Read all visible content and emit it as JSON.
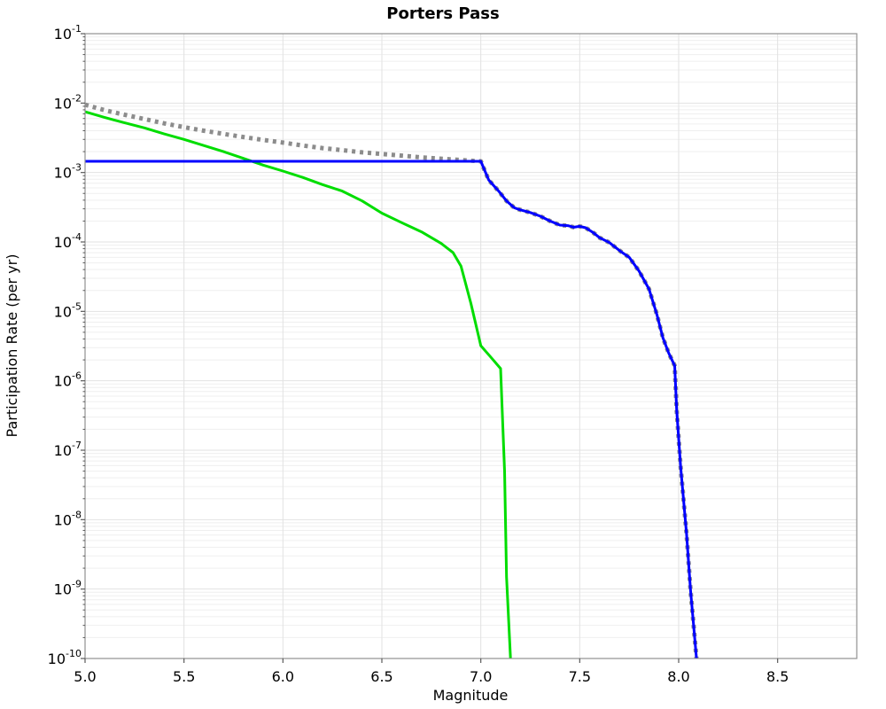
{
  "chart_data": {
    "type": "line",
    "title": "Porters Pass",
    "xlabel": "Magnitude",
    "ylabel": "Participation Rate (per yr)",
    "x_range": [
      5.0,
      8.9
    ],
    "y_exp_range": [
      -1,
      -10
    ],
    "x_ticks": [
      5.0,
      5.5,
      6.0,
      6.5,
      7.0,
      7.5,
      8.0,
      8.5
    ],
    "x_tick_labels": [
      "5.0",
      "5.5",
      "6.0",
      "6.5",
      "7.0",
      "7.5",
      "8.0",
      "8.5"
    ],
    "y_tick_base": "10",
    "y_tick_exponents": [
      -1,
      -2,
      -3,
      -4,
      -5,
      -6,
      -7,
      -8,
      -9,
      -10
    ],
    "grid": true,
    "legend_position": "none",
    "colors": {
      "background": "#ffffff",
      "plot_background": "#ffffff",
      "border": "#919191",
      "grid_major": "#e2e2e2",
      "grid_minor": "#efefef",
      "tick": "#5a5a5a",
      "text": "#000000",
      "blue_series": "#0000ff",
      "green_series": "#00dd00",
      "gray_series": "#8c8c8c"
    },
    "series": [
      {
        "name": "green-solid-curve",
        "color": "#00dd00",
        "style": "solid",
        "width": 3,
        "points": [
          [
            5.0,
            0.0075
          ],
          [
            5.1,
            0.0062
          ],
          [
            5.2,
            0.0052
          ],
          [
            5.3,
            0.0044
          ],
          [
            5.4,
            0.0036
          ],
          [
            5.5,
            0.003
          ],
          [
            5.6,
            0.00245
          ],
          [
            5.7,
            0.002
          ],
          [
            5.8,
            0.0016
          ],
          [
            5.9,
            0.00128
          ],
          [
            6.0,
            0.00105
          ],
          [
            6.1,
            0.00085
          ],
          [
            6.2,
            0.00067
          ],
          [
            6.3,
            0.00054
          ],
          [
            6.4,
            0.00039
          ],
          [
            6.5,
            0.00026
          ],
          [
            6.6,
            0.00019
          ],
          [
            6.7,
            0.00014
          ],
          [
            6.8,
            9.5e-05
          ],
          [
            6.86,
            7e-05
          ],
          [
            6.9,
            4.5e-05
          ],
          [
            6.95,
            1.3e-05
          ],
          [
            7.0,
            3.2e-06
          ],
          [
            7.05,
            2.2e-06
          ],
          [
            7.1,
            1.5e-06
          ],
          [
            7.12,
            5e-08
          ],
          [
            7.13,
            1.5e-09
          ],
          [
            7.15,
            1e-10
          ]
        ]
      },
      {
        "name": "gray-dotted-curve",
        "color": "#8c8c8c",
        "style": "dotted",
        "width": 5,
        "points": [
          [
            5.0,
            0.0095
          ],
          [
            5.1,
            0.0079
          ],
          [
            5.2,
            0.0068
          ],
          [
            5.3,
            0.0059
          ],
          [
            5.4,
            0.0051
          ],
          [
            5.5,
            0.0045
          ],
          [
            5.6,
            0.004
          ],
          [
            5.7,
            0.0036
          ],
          [
            5.8,
            0.00325
          ],
          [
            5.9,
            0.00295
          ],
          [
            6.0,
            0.0027
          ],
          [
            6.1,
            0.00245
          ],
          [
            6.2,
            0.00225
          ],
          [
            6.3,
            0.0021
          ],
          [
            6.4,
            0.00195
          ],
          [
            6.5,
            0.00185
          ],
          [
            6.6,
            0.00175
          ],
          [
            6.7,
            0.00165
          ],
          [
            6.8,
            0.00158
          ],
          [
            6.9,
            0.00151
          ],
          [
            7.0,
            0.00145
          ],
          [
            7.04,
            0.00078
          ],
          [
            7.09,
            0.00054
          ],
          [
            7.13,
            0.00039
          ],
          [
            7.17,
            0.00031
          ],
          [
            7.2,
            0.00029
          ],
          [
            7.25,
            0.000265
          ],
          [
            7.3,
            0.000235
          ],
          [
            7.35,
            0.0002
          ],
          [
            7.4,
            0.000175
          ],
          [
            7.44,
            0.000172
          ],
          [
            7.47,
            0.000163
          ],
          [
            7.5,
            0.000168
          ],
          [
            7.53,
            0.00016
          ],
          [
            7.57,
            0.000135
          ],
          [
            7.6,
            0.000115
          ],
          [
            7.65,
            9.8e-05
          ],
          [
            7.67,
            8.8e-05
          ],
          [
            7.71,
            7.2e-05
          ],
          [
            7.75,
            6e-05
          ],
          [
            7.8,
            3.8e-05
          ],
          [
            7.85,
            2.1e-05
          ],
          [
            7.89,
            9e-06
          ],
          [
            7.92,
            4.2e-06
          ],
          [
            7.95,
            2.5e-06
          ],
          [
            7.98,
            1.65e-06
          ],
          [
            7.99,
            3.7e-07
          ],
          [
            8.01,
            5.8e-08
          ],
          [
            8.04,
            6.2e-09
          ],
          [
            8.06,
            9.6e-10
          ],
          [
            8.09,
            1e-10
          ]
        ]
      },
      {
        "name": "blue-solid-curve",
        "color": "#0000ff",
        "style": "solid",
        "width": 3,
        "points": [
          [
            5.0,
            0.00145
          ],
          [
            7.0,
            0.00145
          ],
          [
            7.04,
            0.00078
          ],
          [
            7.09,
            0.00054
          ],
          [
            7.13,
            0.00039
          ],
          [
            7.17,
            0.00031
          ],
          [
            7.2,
            0.00029
          ],
          [
            7.25,
            0.000265
          ],
          [
            7.3,
            0.000235
          ],
          [
            7.35,
            0.0002
          ],
          [
            7.4,
            0.000175
          ],
          [
            7.44,
            0.000172
          ],
          [
            7.47,
            0.000163
          ],
          [
            7.5,
            0.000168
          ],
          [
            7.53,
            0.00016
          ],
          [
            7.57,
            0.000135
          ],
          [
            7.6,
            0.000115
          ],
          [
            7.65,
            9.8e-05
          ],
          [
            7.67,
            8.8e-05
          ],
          [
            7.71,
            7.2e-05
          ],
          [
            7.75,
            6e-05
          ],
          [
            7.8,
            3.8e-05
          ],
          [
            7.85,
            2.1e-05
          ],
          [
            7.89,
            9e-06
          ],
          [
            7.92,
            4.2e-06
          ],
          [
            7.95,
            2.5e-06
          ],
          [
            7.98,
            1.65e-06
          ],
          [
            7.99,
            3.7e-07
          ],
          [
            8.01,
            5.8e-08
          ],
          [
            8.04,
            6.2e-09
          ],
          [
            8.06,
            9.6e-10
          ],
          [
            8.09,
            1e-10
          ]
        ]
      }
    ]
  }
}
